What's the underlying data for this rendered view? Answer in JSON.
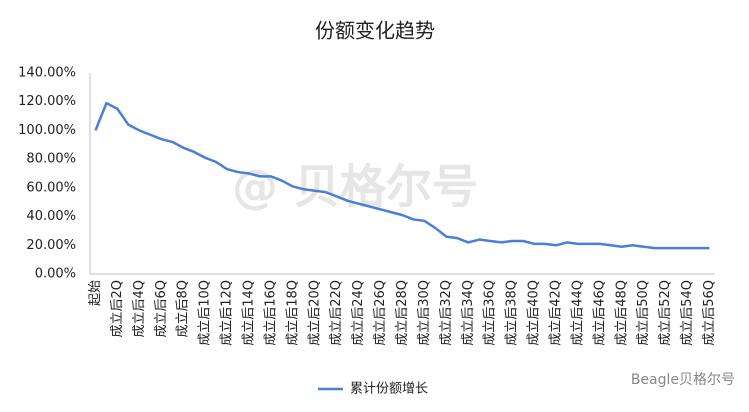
{
  "chart_data": {
    "type": "line",
    "title": "份额变化趋势",
    "categories": [
      "起始",
      null,
      "成立后2Q",
      null,
      "成立后4Q",
      null,
      "成立后6Q",
      null,
      "成立后8Q",
      null,
      "成立后10Q",
      null,
      "成立后12Q",
      null,
      "成立后14Q",
      null,
      "成立后16Q",
      null,
      "成立后18Q",
      null,
      "成立后20Q",
      null,
      "成立后22Q",
      null,
      "成立后24Q",
      null,
      "成立后26Q",
      null,
      "成立后28Q",
      null,
      "成立后30Q",
      null,
      "成立后32Q",
      null,
      "成立后34Q",
      null,
      "成立后36Q",
      null,
      "成立后38Q",
      null,
      "成立后40Q",
      null,
      "成立后42Q",
      null,
      "成立后44Q",
      null,
      "成立后46Q",
      null,
      "成立后48Q",
      null,
      "成立后50Q",
      null,
      "成立后52Q",
      null,
      "成立后54Q",
      null,
      "成立后56Q"
    ],
    "series": [
      {
        "name": "累计份额增长",
        "color": "#4a7fd6",
        "values": [
          100,
          119,
          115,
          104,
          100,
          97,
          94,
          92,
          88,
          85,
          81,
          78,
          73,
          71,
          70,
          68,
          68,
          65,
          61,
          59,
          58,
          57,
          54,
          51,
          49,
          47,
          45,
          43,
          41,
          38,
          37,
          32,
          26,
          25,
          22,
          24,
          23,
          22,
          23,
          23,
          21,
          21,
          20,
          22,
          21,
          21,
          21,
          20,
          19,
          20,
          19,
          18,
          18,
          18,
          18,
          18,
          18
        ]
      }
    ],
    "ylim": [
      0,
      140
    ],
    "yticks": [
      {
        "value": 0,
        "label": "0.00%"
      },
      {
        "value": 20,
        "label": "20.00%"
      },
      {
        "value": 40,
        "label": "40.00%"
      },
      {
        "value": 60,
        "label": "60.00%"
      },
      {
        "value": 80,
        "label": "80.00%"
      },
      {
        "value": 100,
        "label": "100.00%"
      },
      {
        "value": 120,
        "label": "120.00%"
      },
      {
        "value": 140,
        "label": "140.00%"
      }
    ],
    "grid": false,
    "legend": "bottom",
    "watermark": "@ 贝格尔号",
    "footer_logo": "Beagle贝格尔号"
  }
}
